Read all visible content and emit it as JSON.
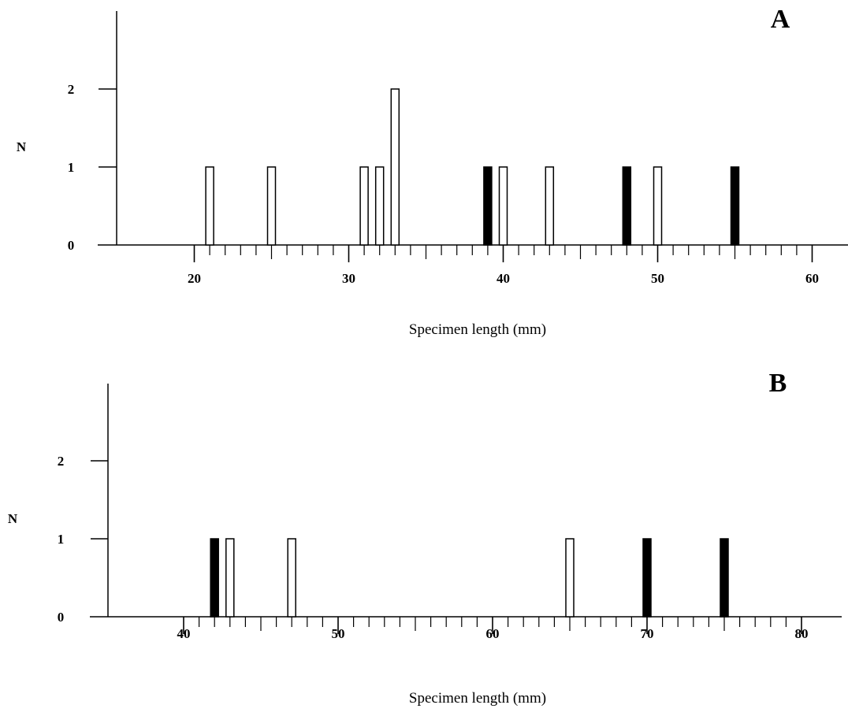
{
  "chart_data": [
    {
      "type": "bar",
      "panel_label": "A",
      "xlabel": "Specimen length (mm)",
      "ylabel": "N",
      "xlim": [
        15,
        62
      ],
      "ylim": [
        0,
        2
      ],
      "xticks": [
        20,
        30,
        40,
        50,
        60
      ],
      "yticks": [
        0,
        1,
        2
      ],
      "series": [
        {
          "fill": "open",
          "color": "#ffffff",
          "points": [
            {
              "x": 21,
              "y": 1
            },
            {
              "x": 25,
              "y": 1
            },
            {
              "x": 31,
              "y": 1
            },
            {
              "x": 32,
              "y": 1
            },
            {
              "x": 33,
              "y": 2
            },
            {
              "x": 40,
              "y": 1
            },
            {
              "x": 43,
              "y": 1
            },
            {
              "x": 50,
              "y": 1
            }
          ]
        },
        {
          "fill": "solid",
          "color": "#000000",
          "points": [
            {
              "x": 39,
              "y": 1
            },
            {
              "x": 48,
              "y": 1
            },
            {
              "x": 55,
              "y": 1
            }
          ]
        }
      ]
    },
    {
      "type": "bar",
      "panel_label": "B",
      "xlabel": "Specimen length (mm)",
      "ylabel": "N",
      "xlim": [
        35,
        82
      ],
      "ylim": [
        0,
        2
      ],
      "xticks": [
        40,
        50,
        60,
        70,
        80
      ],
      "yticks": [
        0,
        1,
        2
      ],
      "series": [
        {
          "fill": "open",
          "color": "#ffffff",
          "points": [
            {
              "x": 43,
              "y": 1
            },
            {
              "x": 47,
              "y": 1
            },
            {
              "x": 65,
              "y": 1
            }
          ]
        },
        {
          "fill": "solid",
          "color": "#000000",
          "points": [
            {
              "x": 42,
              "y": 1
            },
            {
              "x": 70,
              "y": 1
            },
            {
              "x": 75,
              "y": 1
            }
          ]
        }
      ]
    }
  ]
}
